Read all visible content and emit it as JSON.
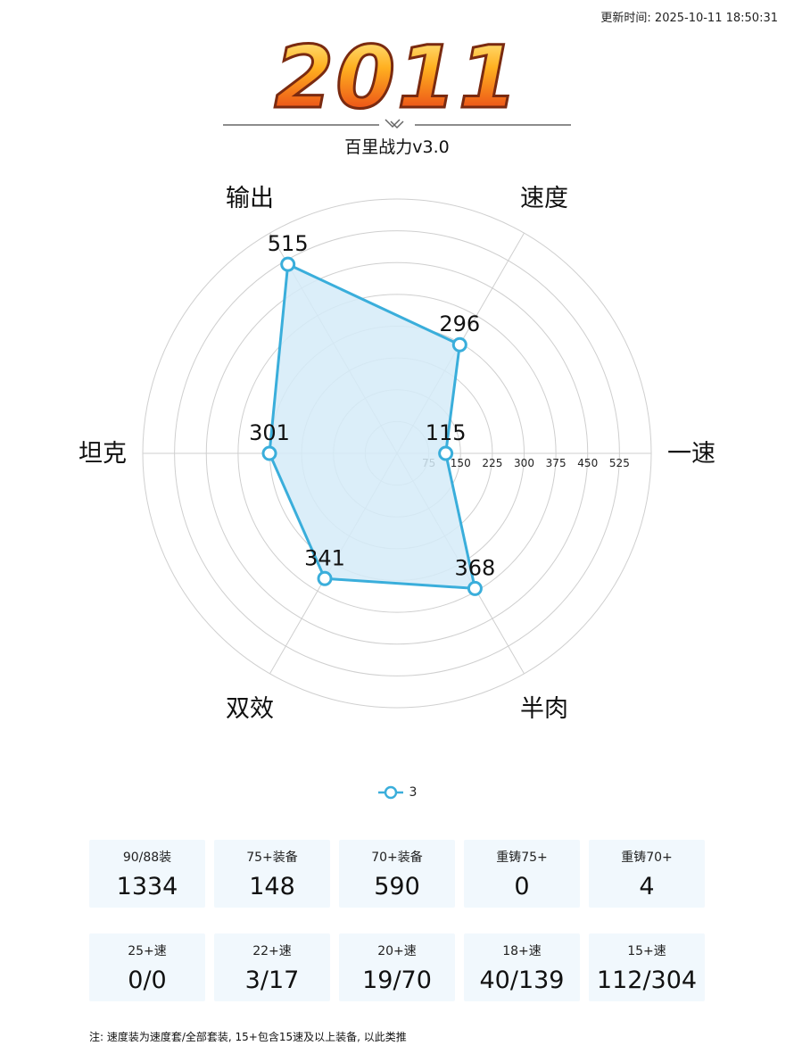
{
  "header": {
    "timestamp": "更新时间: 2025-10-11 18:50:31",
    "logo_text": "2011",
    "subtitle": "百里战力v3.0"
  },
  "colors": {
    "series_line": "#3aaedb",
    "series_fill": "#d5ebf8",
    "grid": "#cfcfcf",
    "card_bg": "#f1f8fd",
    "logo_top": "#ffe36b",
    "logo_bottom": "#e42a14"
  },
  "chart_data": {
    "type": "radar",
    "axes": [
      "一速",
      "速度",
      "输出",
      "坦克",
      "双效",
      "半肉"
    ],
    "rings": [
      75,
      150,
      225,
      300,
      375,
      450,
      525
    ],
    "max": 600,
    "series": [
      {
        "name": "3",
        "values": [
          115,
          296,
          515,
          301,
          341,
          368
        ]
      }
    ],
    "legend_position": "bottom-center"
  },
  "stats_row1": [
    {
      "label": "90/88装",
      "value": "1334"
    },
    {
      "label": "75+装备",
      "value": "148"
    },
    {
      "label": "70+装备",
      "value": "590"
    },
    {
      "label": "重铸75+",
      "value": "0"
    },
    {
      "label": "重铸70+",
      "value": "4"
    }
  ],
  "stats_row2": [
    {
      "label": "25+速",
      "value": "0/0"
    },
    {
      "label": "22+速",
      "value": "3/17"
    },
    {
      "label": "20+速",
      "value": "19/70"
    },
    {
      "label": "18+速",
      "value": "40/139"
    },
    {
      "label": "15+速",
      "value": "112/304"
    }
  ],
  "note": "注: 速度装为速度套/全部套装, 15+包含15速及以上装备, 以此类推"
}
